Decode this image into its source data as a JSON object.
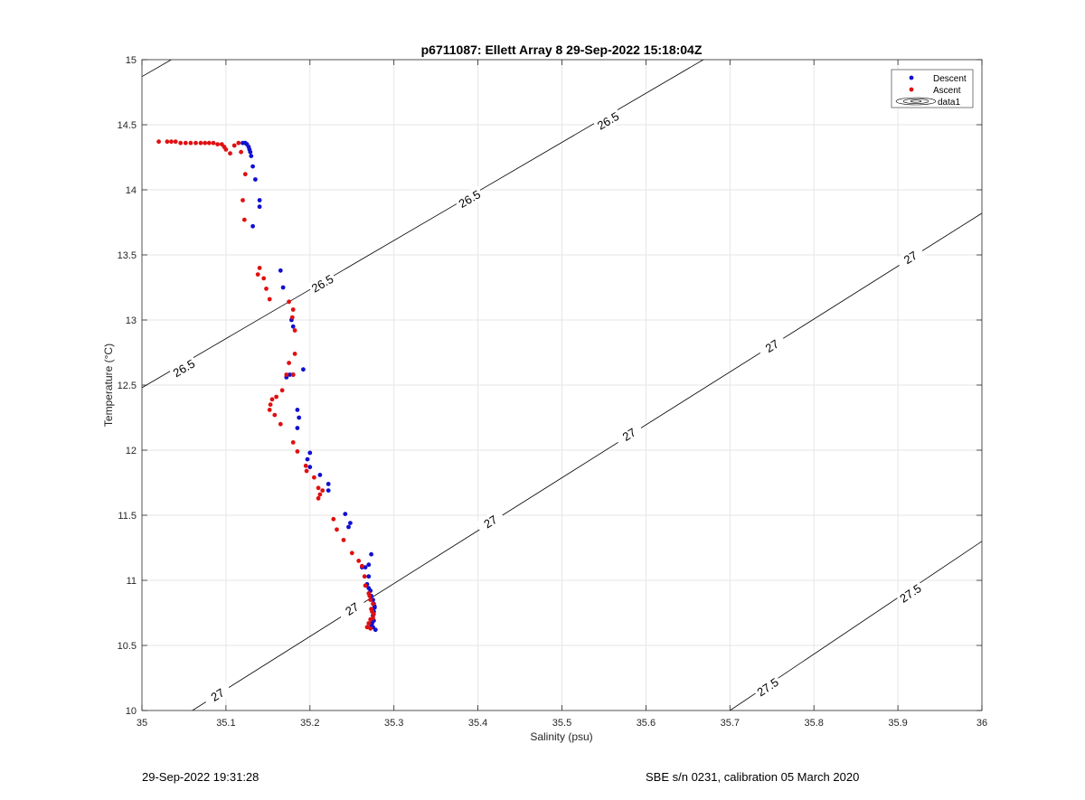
{
  "chart_data": {
    "type": "scatter",
    "title": "p6711087: Ellett Array 8 29-Sep-2022 15:18:04Z",
    "xlabel": "Salinity (psu)",
    "ylabel": "Temperature (°C)",
    "xlim": [
      35,
      36
    ],
    "ylim": [
      10,
      15
    ],
    "xticks": [
      35,
      35.1,
      35.2,
      35.3,
      35.4,
      35.5,
      35.6,
      35.7,
      35.8,
      35.9,
      36
    ],
    "xtick_labels": [
      "35",
      "35.1",
      "35.2",
      "35.3",
      "35.4",
      "35.5",
      "35.6",
      "35.7",
      "35.8",
      "35.9",
      "36"
    ],
    "yticks": [
      10,
      10.5,
      11,
      11.5,
      12,
      12.5,
      13,
      13.5,
      14,
      14.5,
      15
    ],
    "ytick_labels": [
      "10",
      "10.5",
      "11",
      "11.5",
      "12",
      "12.5",
      "13",
      "13.5",
      "14",
      "14.5",
      "15"
    ],
    "grid": true,
    "legend_position": "top-right",
    "legend": [
      "Descent",
      "Ascent",
      "data1"
    ],
    "colors": {
      "descent": "#1010d0",
      "ascent": "#e01010",
      "contour": "#000000",
      "grid": "#e6e6e6"
    },
    "contours": [
      {
        "level": "26.5",
        "segments": [
          [
            [
              35,
              14.87
            ],
            [
              35.035,
              15
            ]
          ],
          [
            [
              35,
              12.48
            ],
            [
              36,
              16.25
            ]
          ]
        ],
        "labels": [
          {
            "x": 35.05,
            "y": 12.63,
            "text": "26.5"
          },
          {
            "x": 35.215,
            "y": 13.28,
            "text": "26.5"
          },
          {
            "x": 35.39,
            "y": 13.93,
            "text": "26.5"
          },
          {
            "x": 35.555,
            "y": 14.53,
            "text": "26.5"
          }
        ]
      },
      {
        "level": "27",
        "segments": [
          [
            [
              35.06,
              10
            ],
            [
              36,
              13.82
            ]
          ]
        ],
        "labels": [
          {
            "x": 35.09,
            "y": 10.12,
            "text": "27"
          },
          {
            "x": 35.25,
            "y": 10.78,
            "text": "27"
          },
          {
            "x": 35.415,
            "y": 11.45,
            "text": "27"
          },
          {
            "x": 35.58,
            "y": 12.12,
            "text": "27"
          },
          {
            "x": 35.75,
            "y": 12.8,
            "text": "27"
          },
          {
            "x": 35.915,
            "y": 13.48,
            "text": "27"
          }
        ]
      },
      {
        "level": "27.5",
        "segments": [
          [
            [
              35.7,
              10
            ],
            [
              36,
              11.3
            ]
          ]
        ],
        "labels": [
          {
            "x": 35.745,
            "y": 10.18,
            "text": "27.5"
          },
          {
            "x": 35.915,
            "y": 10.9,
            "text": "27.5"
          }
        ]
      }
    ],
    "series": [
      {
        "name": "Descent",
        "points": [
          [
            35.12,
            14.36
          ],
          [
            35.123,
            14.36
          ],
          [
            35.125,
            14.35
          ],
          [
            35.127,
            14.33
          ],
          [
            35.128,
            14.31
          ],
          [
            35.129,
            14.29
          ],
          [
            35.13,
            14.26
          ],
          [
            35.132,
            14.18
          ],
          [
            35.135,
            14.08
          ],
          [
            35.14,
            13.92
          ],
          [
            35.14,
            13.87
          ],
          [
            35.132,
            13.72
          ],
          [
            35.165,
            13.38
          ],
          [
            35.168,
            13.25
          ],
          [
            35.178,
            13.0
          ],
          [
            35.18,
            12.95
          ],
          [
            35.176,
            12.58
          ],
          [
            35.18,
            12.58
          ],
          [
            35.172,
            12.56
          ],
          [
            35.192,
            12.62
          ],
          [
            35.185,
            12.31
          ],
          [
            35.187,
            12.25
          ],
          [
            35.185,
            12.17
          ],
          [
            35.2,
            11.98
          ],
          [
            35.197,
            11.93
          ],
          [
            35.2,
            11.87
          ],
          [
            35.212,
            11.81
          ],
          [
            35.222,
            11.74
          ],
          [
            35.222,
            11.69
          ],
          [
            35.242,
            11.51
          ],
          [
            35.248,
            11.44
          ],
          [
            35.246,
            11.41
          ],
          [
            35.273,
            11.2
          ],
          [
            35.27,
            11.12
          ],
          [
            35.266,
            11.1
          ],
          [
            35.262,
            11.1
          ],
          [
            35.27,
            11.03
          ],
          [
            35.268,
            10.97
          ],
          [
            35.27,
            10.94
          ],
          [
            35.272,
            10.92
          ],
          [
            35.273,
            10.88
          ],
          [
            35.275,
            10.85
          ],
          [
            35.276,
            10.82
          ],
          [
            35.277,
            10.79
          ],
          [
            35.276,
            10.76
          ],
          [
            35.275,
            10.73
          ],
          [
            35.276,
            10.69
          ],
          [
            35.274,
            10.67
          ],
          [
            35.275,
            10.64
          ],
          [
            35.278,
            10.62
          ],
          [
            35.273,
            10.65
          ],
          [
            35.277,
            10.8
          ]
        ]
      },
      {
        "name": "Ascent",
        "points": [
          [
            35.02,
            14.37
          ],
          [
            35.03,
            14.37
          ],
          [
            35.035,
            14.37
          ],
          [
            35.04,
            14.37
          ],
          [
            35.046,
            14.36
          ],
          [
            35.052,
            14.36
          ],
          [
            35.058,
            14.36
          ],
          [
            35.064,
            14.36
          ],
          [
            35.07,
            14.36
          ],
          [
            35.075,
            14.36
          ],
          [
            35.08,
            14.36
          ],
          [
            35.085,
            14.36
          ],
          [
            35.09,
            14.35
          ],
          [
            35.095,
            14.35
          ],
          [
            35.098,
            14.33
          ],
          [
            35.1,
            14.31
          ],
          [
            35.105,
            14.28
          ],
          [
            35.11,
            14.34
          ],
          [
            35.115,
            14.36
          ],
          [
            35.118,
            14.29
          ],
          [
            35.123,
            14.12
          ],
          [
            35.12,
            13.92
          ],
          [
            35.122,
            13.77
          ],
          [
            35.14,
            13.4
          ],
          [
            35.145,
            13.32
          ],
          [
            35.138,
            13.35
          ],
          [
            35.148,
            13.24
          ],
          [
            35.152,
            13.16
          ],
          [
            35.175,
            13.14
          ],
          [
            35.18,
            13.08
          ],
          [
            35.179,
            13.02
          ],
          [
            35.182,
            12.92
          ],
          [
            35.182,
            12.74
          ],
          [
            35.175,
            12.67
          ],
          [
            35.18,
            12.58
          ],
          [
            35.172,
            12.58
          ],
          [
            35.167,
            12.46
          ],
          [
            35.16,
            12.41
          ],
          [
            35.155,
            12.39
          ],
          [
            35.153,
            12.35
          ],
          [
            35.152,
            12.31
          ],
          [
            35.158,
            12.27
          ],
          [
            35.165,
            12.2
          ],
          [
            35.18,
            12.06
          ],
          [
            35.185,
            11.99
          ],
          [
            35.195,
            11.88
          ],
          [
            35.196,
            11.84
          ],
          [
            35.205,
            11.79
          ],
          [
            35.21,
            11.71
          ],
          [
            35.212,
            11.66
          ],
          [
            35.215,
            11.69
          ],
          [
            35.21,
            11.63
          ],
          [
            35.228,
            11.47
          ],
          [
            35.232,
            11.39
          ],
          [
            35.24,
            11.31
          ],
          [
            35.25,
            11.21
          ],
          [
            35.258,
            11.15
          ],
          [
            35.262,
            11.11
          ],
          [
            35.265,
            11.03
          ],
          [
            35.266,
            10.96
          ],
          [
            35.27,
            10.9
          ],
          [
            35.272,
            10.85
          ],
          [
            35.275,
            10.82
          ],
          [
            35.273,
            10.78
          ],
          [
            35.276,
            10.74
          ],
          [
            35.272,
            10.7
          ],
          [
            35.27,
            10.67
          ],
          [
            35.268,
            10.64
          ],
          [
            35.272,
            10.63
          ],
          [
            35.275,
            10.71
          ],
          [
            35.274,
            10.76
          ],
          [
            35.271,
            10.88
          ]
        ]
      }
    ]
  },
  "footer": {
    "left": "29-Sep-2022 19:31:28",
    "right": "SBE s/n 0231, calibration 05 March 2020"
  }
}
